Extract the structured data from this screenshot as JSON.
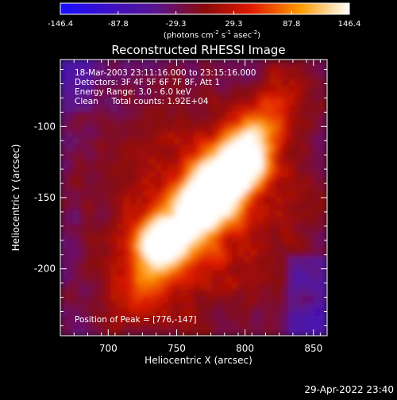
{
  "title": "Reconstructed RHESSI Image",
  "footer_date": "29-Apr-2022 23:40",
  "colorbar": {
    "ticks": [
      "-146.4",
      "-87.8",
      "-29.3",
      "29.3",
      "87.8",
      "146.4"
    ],
    "range": [
      -146.4,
      146.4
    ],
    "unit_prefix": "(photons cm",
    "unit_exp1": "-2",
    "unit_mid": " s",
    "unit_exp2": "-1",
    "unit_mid2": " asec",
    "unit_exp3": "-2",
    "unit_suffix": ")",
    "palette": "sunset: blue-purple-red-orange-yellow-white"
  },
  "info": {
    "line1": "18-Mar-2003 23:11:16.000 to 23:15:16.000",
    "line2": "Detectors: 3F 4F 5F 6F 7F 8F, Att 1",
    "line3": "Energy Range: 3.0 - 6.0 keV",
    "line4_a": "Clean",
    "line4_b": "Total counts: 1.92E+04",
    "peak": "Position of Peak = [776,-147]"
  },
  "chart_data": {
    "type": "heatmap",
    "title": "Reconstructed RHESSI Image",
    "xlabel": "Heliocentric X (arcsec)",
    "ylabel": "Heliocentric Y (arcsec)",
    "xlim": [
      665,
      860
    ],
    "ylim": [
      -247,
      -53
    ],
    "xticks": [
      700,
      750,
      800,
      850
    ],
    "yticks": [
      -100,
      -150,
      -200
    ],
    "peak_position": [
      776,
      -147
    ],
    "peak_value": 146.4
  }
}
